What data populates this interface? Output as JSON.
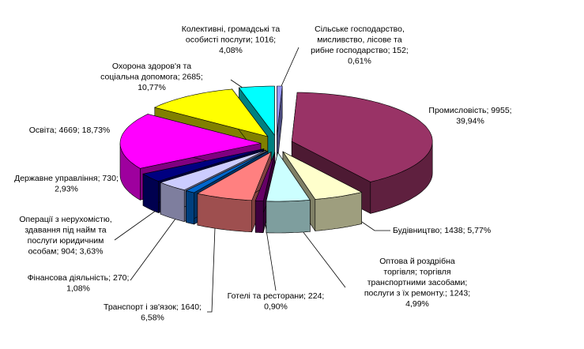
{
  "chart_data": {
    "type": "pie3d",
    "values": [
      152,
      9955,
      1438,
      1243,
      224,
      1640,
      270,
      904,
      730,
      4669,
      2685,
      1016
    ],
    "value_labels": [
      [
        "Сільське господарство,",
        "мисливство, лісове та",
        "рибне господарство; 152;",
        "0,61%"
      ],
      [
        "Промисловість; 9955;",
        "39,94%"
      ],
      [
        "Будівництво; 1438; 5,77%"
      ],
      [
        "Оптова й роздрібна",
        "торгівля; торгівля",
        "транспортними засобами;",
        "послуги з їх ремонту.; 1243;",
        "4,99%"
      ],
      [
        "Готелі та ресторани; 224;",
        "0,90%"
      ],
      [
        "Транспорт і зв'язок; 1640;",
        "6,58%"
      ],
      [
        "Фінансова діяльність; 270;",
        "1,08%"
      ],
      [
        "Операції з нерухомістю,",
        "здавання під найм та",
        "послуги юридичним",
        "особам; 904; 3,63%"
      ],
      [
        "Державне управління; 730;",
        "2,93%"
      ],
      [
        "Освіта; 4669; 18,73%"
      ],
      [
        "Охорона здоров'я та",
        "соціальна допомога; 2685;",
        "10,77%"
      ],
      [
        "Колективні, громадські та",
        "особисті послуги; 1016;",
        "4,08%"
      ]
    ],
    "colors": [
      "#9999ff",
      "#993366",
      "#ffffcc",
      "#ccffff",
      "#660066",
      "#ff8080",
      "#0066cc",
      "#ccccff",
      "#000080",
      "#ff00ff",
      "#ffff00",
      "#00ffff"
    ]
  }
}
